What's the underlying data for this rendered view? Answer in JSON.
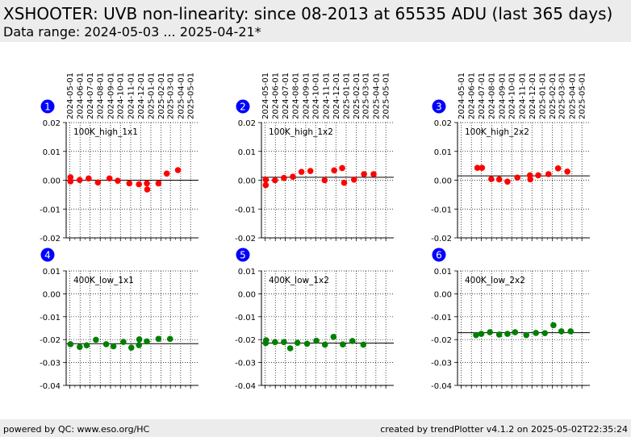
{
  "header": {
    "title": "XSHOOTER: UVB non-linearity: since 08-2013 at 65535 ADU (last 365 days)",
    "subtitle": "Data range: 2024-05-03 ... 2025-04-21*"
  },
  "footer": {
    "left": "powered by QC: www.eso.org/HC",
    "right": "created by trendPlotter v4.1.2 on 2025-05-02T22:35:24"
  },
  "colors": {
    "high": "#ff0000",
    "low": "#008000",
    "badge": "#0000ff"
  },
  "x_tick_labels": [
    "2024-05-01",
    "2024-06-01",
    "2024-07-01",
    "2024-08-01",
    "2024-09-01",
    "2024-10-01",
    "2024-11-01",
    "2024-12-01",
    "2025-01-01",
    "2025-02-01",
    "2025-03-01",
    "2025-04-01",
    "2025-05-01"
  ],
  "chart_data": [
    {
      "type": "scatter",
      "panel": "1",
      "label": "100K_high_1x1",
      "ylim": [
        -0.02,
        0.02
      ],
      "yticks": [
        "0.02",
        "0.01",
        "0.00",
        "-0.01",
        "-0.02"
      ],
      "reference_line": 0.0,
      "marker_color": "#ff0000",
      "x": [
        "2024-05-03",
        "2024-05-03",
        "2024-05-31",
        "2024-06-27",
        "2024-07-25",
        "2024-08-29",
        "2024-09-23",
        "2024-10-28",
        "2024-11-26",
        "2024-12-20",
        "2024-12-21",
        "2025-01-24",
        "2025-02-18",
        "2025-03-24"
      ],
      "y": [
        0.001,
        -0.0004,
        0.0001,
        0.0006,
        -0.0008,
        0.0006,
        -0.0002,
        -0.0011,
        -0.0014,
        -0.0011,
        -0.0032,
        -0.0011,
        0.0023,
        0.0035
      ]
    },
    {
      "type": "scatter",
      "panel": "2",
      "label": "100K_high_1x2",
      "ylim": [
        -0.02,
        0.02
      ],
      "yticks": [
        "0.02",
        "0.01",
        "0.00",
        "-0.01",
        "-0.02"
      ],
      "reference_line": 0.001,
      "marker_color": "#ff0000",
      "x": [
        "2024-05-03",
        "2024-05-03",
        "2024-05-31",
        "2024-06-27",
        "2024-07-24",
        "2024-08-19",
        "2024-09-15",
        "2024-10-28",
        "2024-11-26",
        "2024-12-20",
        "2024-12-26",
        "2025-01-25",
        "2025-02-24",
        "2025-03-25"
      ],
      "y": [
        0.0002,
        -0.0017,
        0.0,
        0.0008,
        0.0012,
        0.0029,
        0.0032,
        0.0,
        0.0034,
        0.0042,
        -0.0009,
        0.0002,
        0.0021,
        0.0021
      ]
    },
    {
      "type": "scatter",
      "panel": "3",
      "label": "100K_high_2x2",
      "ylim": [
        -0.02,
        0.02
      ],
      "yticks": [
        "0.02",
        "0.01",
        "0.00",
        "-0.01",
        "-0.02"
      ],
      "reference_line": 0.0015,
      "marker_color": "#ff0000",
      "x": [
        "2024-06-19",
        "2024-07-03",
        "2024-07-31",
        "2024-08-24",
        "2024-09-18",
        "2024-10-18",
        "2024-11-25",
        "2024-11-26",
        "2024-12-20",
        "2025-01-20",
        "2025-02-18",
        "2025-03-18"
      ],
      "y": [
        0.0043,
        0.0043,
        0.0004,
        0.0003,
        -0.0005,
        0.0009,
        0.0017,
        0.0003,
        0.0017,
        0.0021,
        0.0041,
        0.003
      ]
    },
    {
      "type": "scatter",
      "panel": "4",
      "label": "400K_low_1x1",
      "ylim": [
        -0.04,
        0.01
      ],
      "yticks": [
        "0.01",
        "0.00",
        "-0.01",
        "-0.02",
        "-0.03",
        "-0.04"
      ],
      "reference_line": -0.0218,
      "marker_color": "#008000",
      "x": [
        "2024-05-03",
        "2024-05-31",
        "2024-06-21",
        "2024-07-19",
        "2024-08-19",
        "2024-09-10",
        "2024-10-10",
        "2024-11-03",
        "2024-11-26",
        "2024-11-27",
        "2024-12-20",
        "2025-01-24",
        "2025-02-28"
      ],
      "y": [
        -0.022,
        -0.0232,
        -0.0225,
        -0.0201,
        -0.022,
        -0.0229,
        -0.021,
        -0.0235,
        -0.0224,
        -0.0199,
        -0.0208,
        -0.0197,
        -0.0197
      ]
    },
    {
      "type": "scatter",
      "panel": "5",
      "label": "400K_low_1x2",
      "ylim": [
        -0.04,
        0.01
      ],
      "yticks": [
        "0.01",
        "0.00",
        "-0.01",
        "-0.02",
        "-0.03",
        "-0.04"
      ],
      "reference_line": -0.0215,
      "marker_color": "#008000",
      "x": [
        "2024-05-03",
        "2024-05-04",
        "2024-05-31",
        "2024-06-27",
        "2024-07-16",
        "2024-08-07",
        "2024-09-05",
        "2024-10-03",
        "2024-10-29",
        "2024-11-24",
        "2024-12-22",
        "2025-01-20",
        "2025-02-22"
      ],
      "y": [
        -0.0215,
        -0.0203,
        -0.0211,
        -0.0211,
        -0.0238,
        -0.0214,
        -0.0218,
        -0.0205,
        -0.0222,
        -0.0188,
        -0.0221,
        -0.0206,
        -0.0222
      ]
    },
    {
      "type": "scatter",
      "panel": "6",
      "label": "400K_low_2x2",
      "ylim": [
        -0.04,
        0.01
      ],
      "yticks": [
        "0.01",
        "0.00",
        "-0.01",
        "-0.02",
        "-0.03",
        "-0.04"
      ],
      "reference_line": -0.017,
      "marker_color": "#008000",
      "x": [
        "2024-06-15",
        "2024-07-01",
        "2024-07-27",
        "2024-08-24",
        "2024-09-18",
        "2024-10-11",
        "2024-11-14",
        "2024-12-13",
        "2025-01-09",
        "2025-02-04",
        "2025-02-28",
        "2025-03-28"
      ],
      "y": [
        -0.018,
        -0.0175,
        -0.0168,
        -0.0178,
        -0.0175,
        -0.0168,
        -0.018,
        -0.0171,
        -0.0172,
        -0.0137,
        -0.0164,
        -0.0164
      ]
    }
  ]
}
